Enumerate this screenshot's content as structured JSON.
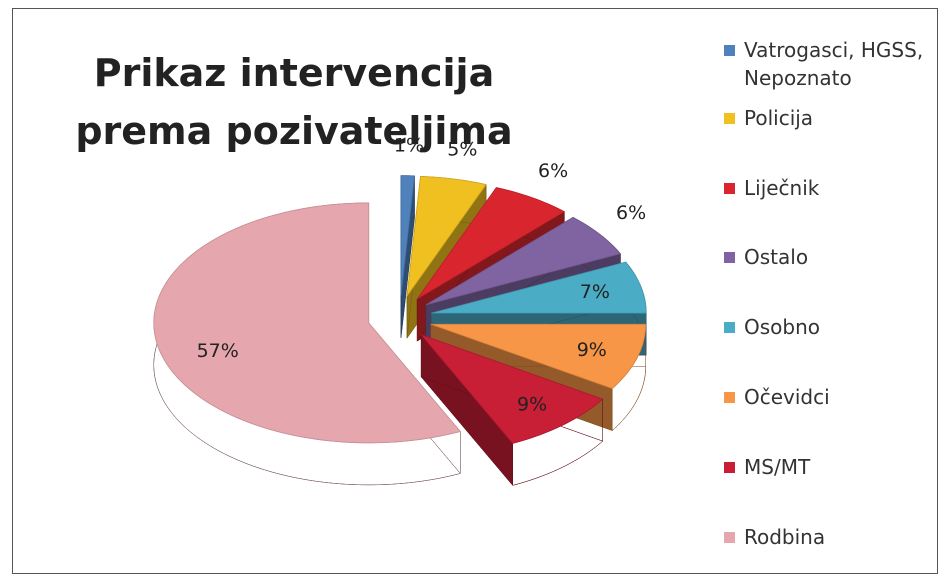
{
  "chart_data": {
    "type": "pie",
    "title": "Prikaz intervencija prema pozivateljima",
    "categories": [
      "Vatrogasci, HGSS, Nepoznato",
      "Policija",
      "Liječnik",
      "Ostalo",
      "Osobno",
      "Očevidci",
      "MS/MT",
      "Rodbina"
    ],
    "values": [
      1,
      5,
      6,
      6,
      7,
      9,
      9,
      57
    ],
    "value_labels": [
      "1%",
      "5%",
      "6%",
      "6%",
      "7%",
      "9%",
      "9%",
      "57%"
    ],
    "colors": [
      "#4f81bd",
      "#f0c020",
      "#d9262e",
      "#8064a2",
      "#4bacc6",
      "#f79646",
      "#c81e36",
      "#e6a6ae"
    ],
    "legend": "right"
  }
}
